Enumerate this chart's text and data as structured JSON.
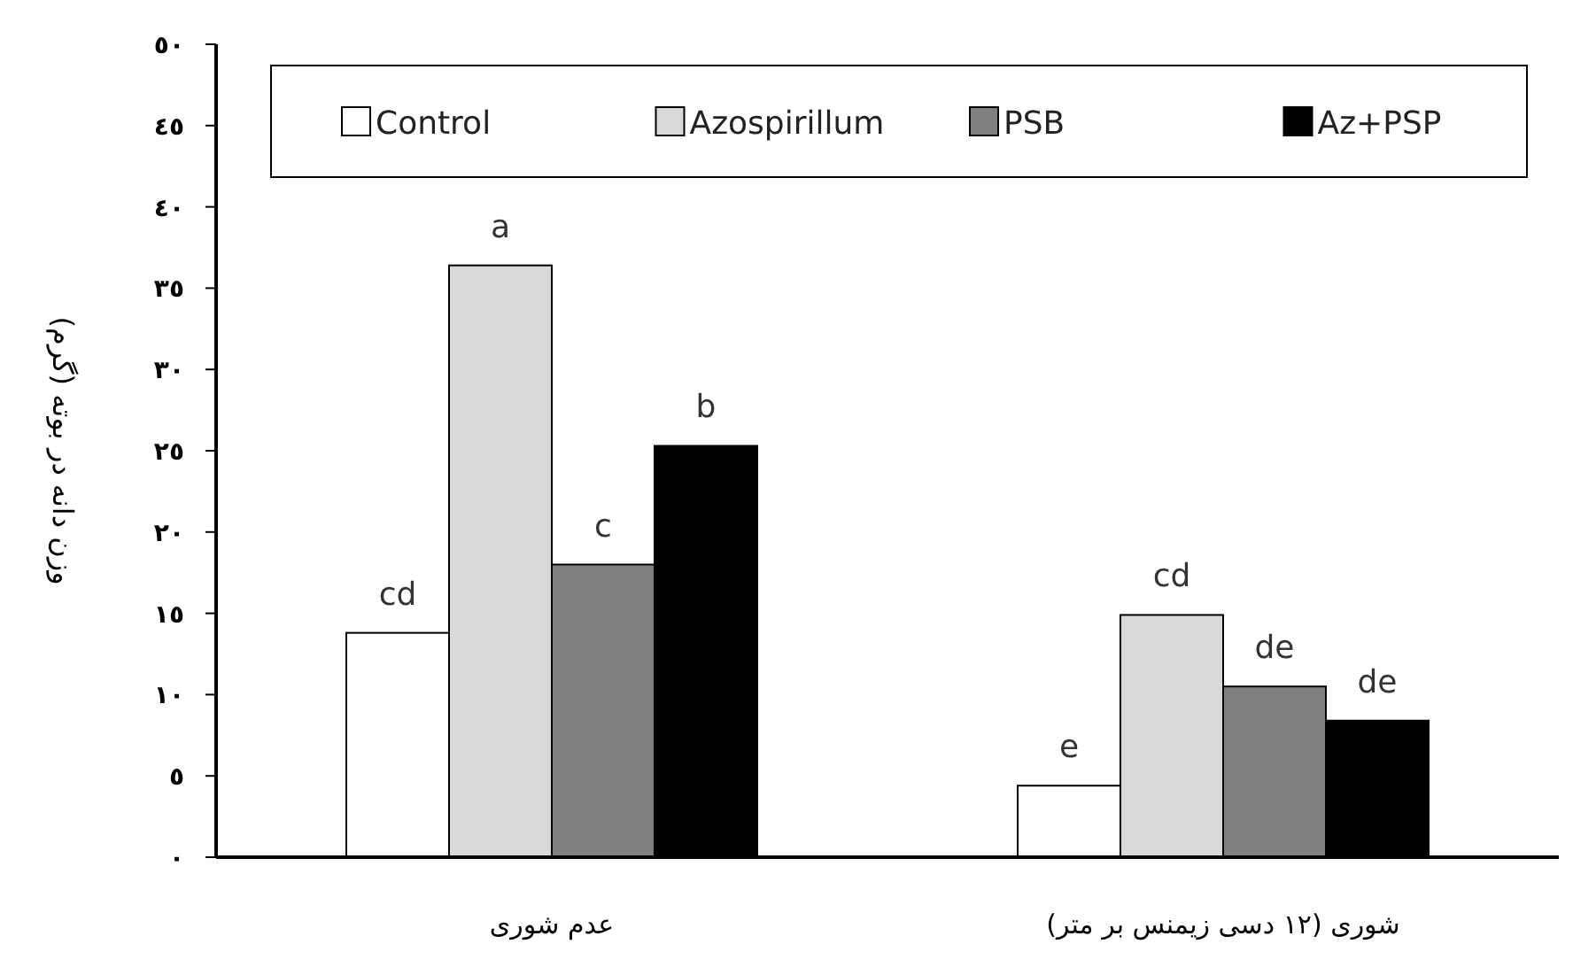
{
  "chart_data": {
    "type": "bar",
    "ylabel": "وزن دانه در بوته (گرم)",
    "categories": [
      "عدم شوری",
      "شوری (١٢ دسی زیمنس بر متر)"
    ],
    "series": [
      {
        "name": "Control",
        "color": "#ffffff",
        "values": [
          13.8,
          4.4
        ],
        "value_labels": [
          "cd",
          "e"
        ]
      },
      {
        "name": "Azospirillum",
        "color": "#d9d9d9",
        "values": [
          36.4,
          14.9
        ],
        "value_labels": [
          "a",
          "cd"
        ]
      },
      {
        "name": "PSB",
        "color": "#808080",
        "values": [
          18.0,
          10.5
        ],
        "value_labels": [
          "c",
          "de"
        ]
      },
      {
        "name": "Az+PSP",
        "color": "#000000",
        "values": [
          25.3,
          8.4
        ],
        "value_labels": [
          "b",
          "de"
        ]
      }
    ],
    "ylim": [
      0,
      50
    ],
    "yticks": [
      {
        "value": 0,
        "label": "٠"
      },
      {
        "value": 5,
        "label": "٥"
      },
      {
        "value": 10,
        "label": "١٠"
      },
      {
        "value": 15,
        "label": "١٥"
      },
      {
        "value": 20,
        "label": "٢٠"
      },
      {
        "value": 25,
        "label": "٢٥"
      },
      {
        "value": 30,
        "label": "٣٠"
      },
      {
        "value": 35,
        "label": "٣٥"
      },
      {
        "value": 40,
        "label": "٤٠"
      },
      {
        "value": 45,
        "label": "٤٥"
      },
      {
        "value": 50,
        "label": "٥٠"
      }
    ],
    "legend": "top",
    "grid": false
  }
}
